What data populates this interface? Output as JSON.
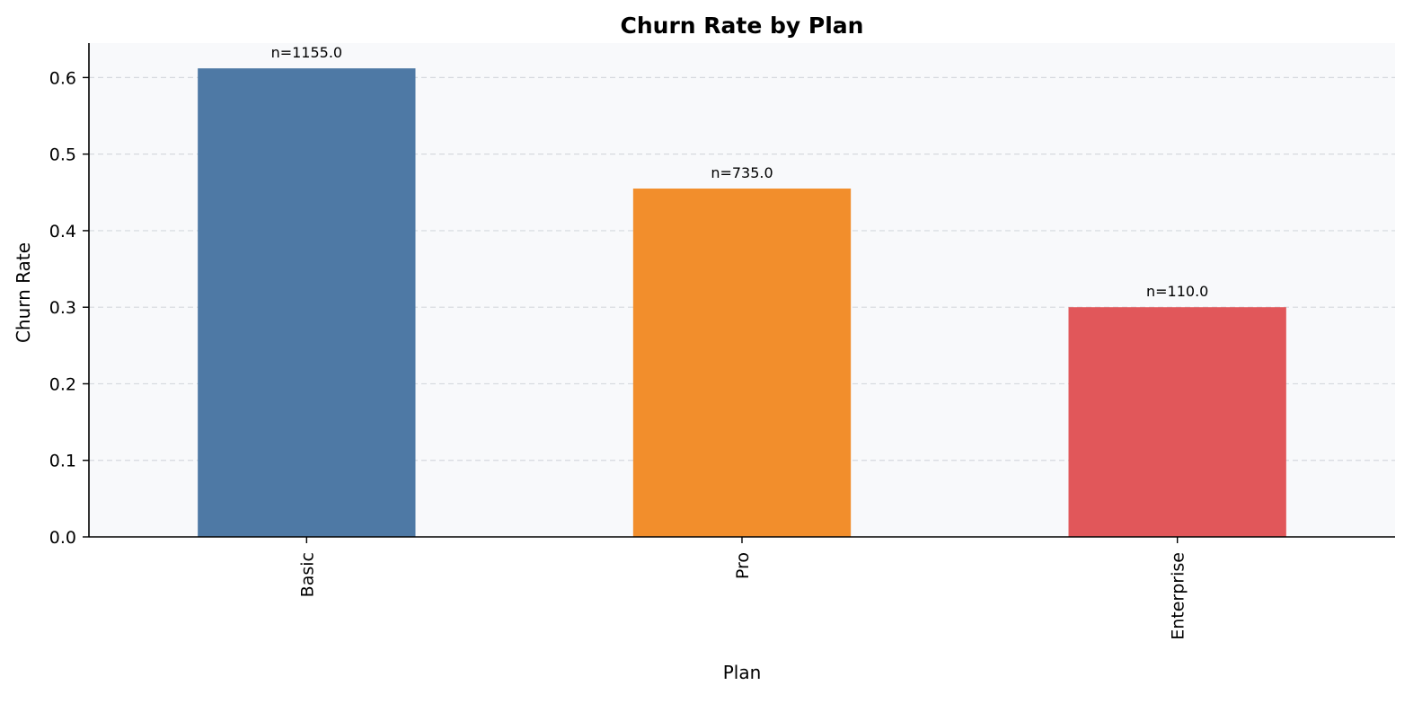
{
  "chart_data": {
    "type": "bar",
    "title": "Churn Rate by Plan",
    "xlabel": "Plan",
    "ylabel": "Churn Rate",
    "categories": [
      "Basic",
      "Pro",
      "Enterprise"
    ],
    "values": [
      0.612,
      0.455,
      0.3
    ],
    "bar_labels": [
      "n=1155.0",
      "n=735.0",
      "n=110.0"
    ],
    "colors": [
      "#4e79a5",
      "#f28e2c",
      "#e1575a"
    ],
    "ylim": [
      0,
      0.645
    ],
    "yticks": [
      0.0,
      0.1,
      0.2,
      0.3,
      0.4,
      0.5,
      0.6
    ],
    "ytick_labels": [
      "0.0",
      "0.1",
      "0.2",
      "0.3",
      "0.4",
      "0.5",
      "0.6"
    ],
    "grid": "y-dashed",
    "plot_background": "#f8f9fb",
    "legend": "none"
  }
}
